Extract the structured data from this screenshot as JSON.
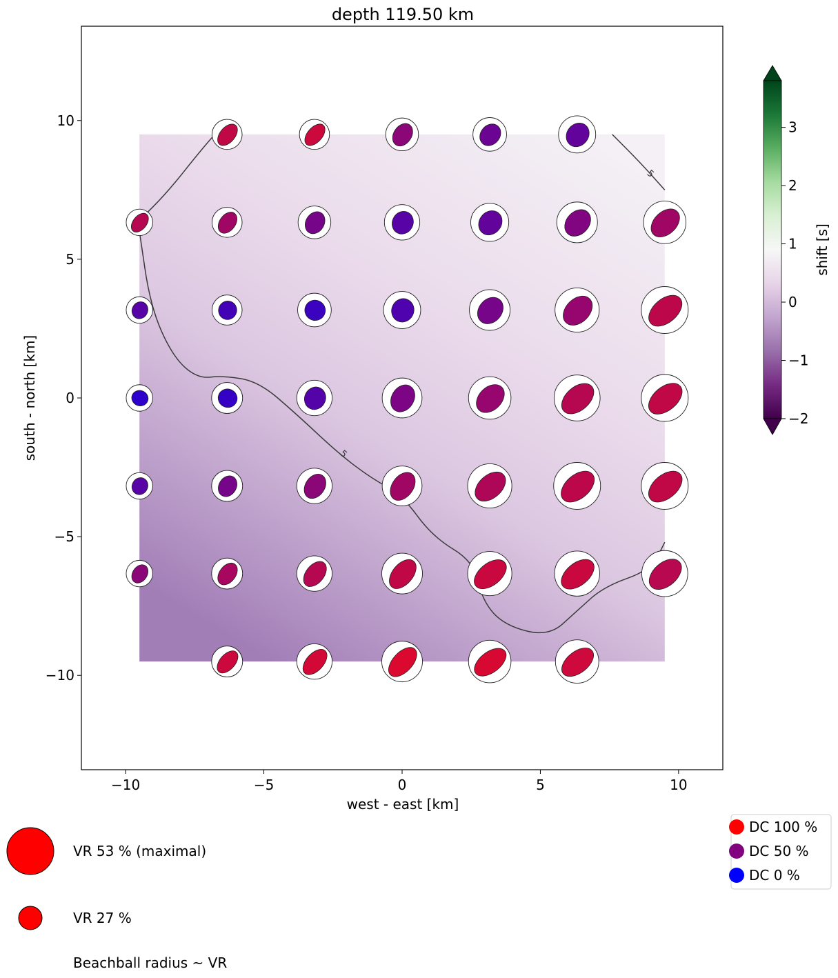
{
  "chart_data": {
    "type": "scatter",
    "title": "depth 119.50 km",
    "xlabel": "west - east [km]",
    "ylabel": "south - north [km]",
    "xlim": [
      -11.6,
      11.6
    ],
    "ylim": [
      -13.4,
      13.4
    ],
    "xticks": [
      -10,
      -5,
      0,
      5,
      10
    ],
    "yticks": [
      -10,
      -5,
      0,
      5,
      10
    ],
    "xtick_labels": [
      "−10",
      "−5",
      "0",
      "5",
      "10"
    ],
    "ytick_labels": [
      "−10",
      "−5",
      "0",
      "5",
      "10"
    ],
    "grid": false,
    "background_field": {
      "name": "shift",
      "extent_x": [
        -9.5,
        9.5
      ],
      "extent_y": [
        -9.5,
        9.5
      ],
      "corner_values": {
        "top-left": 0.85,
        "top-right": 0.8,
        "bottom-left": -0.75,
        "bottom-right": -0.1
      },
      "contour_level": 5,
      "contour_label": "5"
    },
    "colorbar": {
      "label": "shift [s]",
      "ticks": [
        -2,
        -1,
        0,
        1,
        2,
        3
      ],
      "tick_labels": [
        "−2",
        "−1",
        "0",
        "1",
        "2",
        "3"
      ],
      "range": [
        -2.0,
        3.8
      ],
      "extend": "both",
      "colormap": "PRGn"
    },
    "grid_x": [
      -9.5,
      -6.33,
      -3.17,
      0,
      3.17,
      6.33,
      9.5
    ],
    "grid_y": [
      9.5,
      6.33,
      3.17,
      0,
      -3.17,
      -6.33,
      -9.5
    ],
    "beachballs": [
      {
        "x": -6.33,
        "y": 9.5,
        "vr": 34,
        "dc": 80
      },
      {
        "x": -3.17,
        "y": 9.5,
        "vr": 34,
        "dc": 85
      },
      {
        "x": 0,
        "y": 9.5,
        "vr": 37,
        "dc": 55
      },
      {
        "x": 3.17,
        "y": 9.5,
        "vr": 38,
        "dc": 40
      },
      {
        "x": 6.33,
        "y": 9.5,
        "vr": 42,
        "dc": 35
      },
      {
        "x": -9.5,
        "y": 6.33,
        "vr": 30,
        "dc": 75
      },
      {
        "x": -6.33,
        "y": 6.33,
        "vr": 34,
        "dc": 65
      },
      {
        "x": -3.17,
        "y": 6.33,
        "vr": 37,
        "dc": 45
      },
      {
        "x": 0,
        "y": 6.33,
        "vr": 40,
        "dc": 30
      },
      {
        "x": 3.17,
        "y": 6.33,
        "vr": 43,
        "dc": 35
      },
      {
        "x": 6.33,
        "y": 6.33,
        "vr": 46,
        "dc": 50
      },
      {
        "x": 9.5,
        "y": 6.33,
        "vr": 48,
        "dc": 65
      },
      {
        "x": -9.5,
        "y": 3.17,
        "vr": 30,
        "dc": 30
      },
      {
        "x": -6.33,
        "y": 3.17,
        "vr": 34,
        "dc": 20
      },
      {
        "x": -3.17,
        "y": 3.17,
        "vr": 38,
        "dc": 15
      },
      {
        "x": 0,
        "y": 3.17,
        "vr": 42,
        "dc": 25
      },
      {
        "x": 3.17,
        "y": 3.17,
        "vr": 46,
        "dc": 45
      },
      {
        "x": 6.33,
        "y": 3.17,
        "vr": 50,
        "dc": 60
      },
      {
        "x": 9.5,
        "y": 3.17,
        "vr": 53,
        "dc": 78
      },
      {
        "x": -9.5,
        "y": 0,
        "vr": 30,
        "dc": 8
      },
      {
        "x": -6.33,
        "y": 0,
        "vr": 35,
        "dc": 12
      },
      {
        "x": -3.17,
        "y": 0,
        "vr": 40,
        "dc": 28
      },
      {
        "x": 0,
        "y": 0,
        "vr": 45,
        "dc": 48
      },
      {
        "x": 3.17,
        "y": 0,
        "vr": 48,
        "dc": 60
      },
      {
        "x": 6.33,
        "y": 0,
        "vr": 52,
        "dc": 75
      },
      {
        "x": 9.5,
        "y": 0,
        "vr": 53,
        "dc": 80
      },
      {
        "x": -9.5,
        "y": -3.17,
        "vr": 30,
        "dc": 30
      },
      {
        "x": -6.33,
        "y": -3.17,
        "vr": 35,
        "dc": 45
      },
      {
        "x": -3.17,
        "y": -3.17,
        "vr": 40,
        "dc": 55
      },
      {
        "x": 0,
        "y": -3.17,
        "vr": 45,
        "dc": 65
      },
      {
        "x": 3.17,
        "y": -3.17,
        "vr": 50,
        "dc": 72
      },
      {
        "x": 6.33,
        "y": -3.17,
        "vr": 53,
        "dc": 78
      },
      {
        "x": 9.5,
        "y": -3.17,
        "vr": 53,
        "dc": 80
      },
      {
        "x": -9.5,
        "y": -6.33,
        "vr": 30,
        "dc": 55
      },
      {
        "x": -6.33,
        "y": -6.33,
        "vr": 35,
        "dc": 68
      },
      {
        "x": -3.17,
        "y": -6.33,
        "vr": 40,
        "dc": 75
      },
      {
        "x": 0,
        "y": -6.33,
        "vr": 46,
        "dc": 80
      },
      {
        "x": 3.17,
        "y": -6.33,
        "vr": 50,
        "dc": 84
      },
      {
        "x": 6.33,
        "y": -6.33,
        "vr": 51,
        "dc": 84
      },
      {
        "x": 9.5,
        "y": -6.33,
        "vr": 52,
        "dc": 76
      },
      {
        "x": -6.33,
        "y": -9.5,
        "vr": 35,
        "dc": 85
      },
      {
        "x": -3.17,
        "y": -9.5,
        "vr": 40,
        "dc": 88
      },
      {
        "x": 0,
        "y": -9.5,
        "vr": 46,
        "dc": 92
      },
      {
        "x": 3.17,
        "y": -9.5,
        "vr": 48,
        "dc": 90
      },
      {
        "x": 6.33,
        "y": -9.5,
        "vr": 49,
        "dc": 86
      }
    ],
    "contour_path_km": [
      [
        [
          -9.5,
          6.4
        ],
        [
          -8.5,
          7.4
        ],
        [
          -7.3,
          8.9
        ],
        [
          -6.6,
          9.7
        ]
      ],
      [
        [
          -9.5,
          6.0
        ],
        [
          -9.1,
          3.3
        ],
        [
          -8.3,
          1.5
        ],
        [
          -7.4,
          0.7
        ],
        [
          -6.5,
          0.8
        ],
        [
          -5.2,
          0.6
        ],
        [
          -3.8,
          -0.6
        ],
        [
          -2.3,
          -2.0
        ],
        [
          -1.1,
          -2.9
        ],
        [
          0.0,
          -3.5
        ],
        [
          1.1,
          -5.0
        ],
        [
          2.6,
          -5.9
        ],
        [
          2.9,
          -7.3
        ],
        [
          3.7,
          -8.2
        ],
        [
          5.3,
          -8.6
        ],
        [
          6.3,
          -7.7
        ],
        [
          7.3,
          -6.8
        ],
        [
          9.0,
          -6.2
        ],
        [
          9.5,
          -5.2
        ]
      ],
      [
        [
          7.6,
          9.5
        ],
        [
          8.6,
          8.5
        ],
        [
          9.5,
          7.5
        ]
      ]
    ],
    "contour_label_positions_km": [
      [
        -2.1,
        -2.0
      ],
      [
        9.0,
        8.1
      ]
    ]
  },
  "legend_vr": {
    "items": [
      {
        "label": "VR 53 % (maximal)",
        "vr": 53
      },
      {
        "label": "VR 27 %",
        "vr": 27
      }
    ],
    "note": "Beachball radius ~ VR"
  },
  "legend_dc": {
    "items": [
      {
        "label": "DC 100 %",
        "color": "#ff0000"
      },
      {
        "label": "DC 50 %",
        "color": "#800080"
      },
      {
        "label": "DC 0 %",
        "color": "#0000ff"
      }
    ]
  },
  "colors": {
    "dc100": "#ff0000",
    "dc50": "#800080",
    "dc0": "#0000ff"
  }
}
